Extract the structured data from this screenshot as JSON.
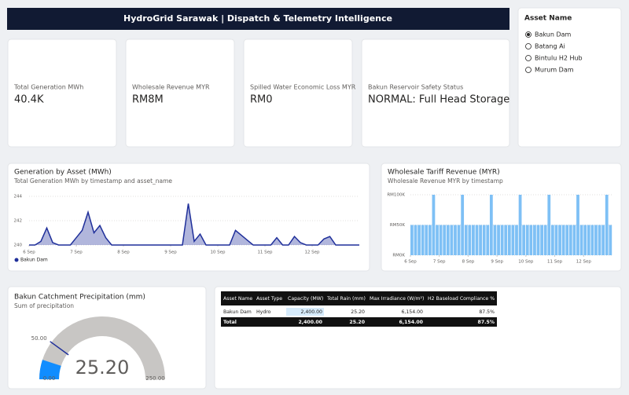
{
  "header": {
    "title": "HydroGrid Sarawak | Dispatch & Telemetry Intelligence"
  },
  "cards": [
    {
      "label": "Total Generation MWh",
      "value": "40.4K"
    },
    {
      "label": "Wholesale Revenue MYR",
      "value": "RM8M"
    },
    {
      "label": "Spilled Water Economic Loss MYR",
      "value": "RM0"
    },
    {
      "label": "Bakun Reservoir Safety Status",
      "value": "NORMAL: Full Head Storage"
    }
  ],
  "slicer": {
    "title": "Asset Name",
    "options": [
      "Bakun Dam",
      "Batang Ai",
      "Bintulu H2 Hub",
      "Murum Dam"
    ],
    "selected": 0
  },
  "chart_data": [
    {
      "type": "area",
      "title": "Generation by Asset (MWh)",
      "subtitle": "Total Generation MWh by timestamp and asset_name",
      "x": [
        6,
        6.125,
        6.25,
        6.375,
        6.5,
        6.625,
        6.75,
        6.875,
        7,
        7.125,
        7.25,
        7.375,
        7.5,
        7.625,
        7.75,
        7.875,
        8,
        8.125,
        8.25,
        8.375,
        8.5,
        8.625,
        8.75,
        8.875,
        9,
        9.125,
        9.25,
        9.375,
        9.5,
        9.625,
        9.75,
        9.875,
        10,
        10.125,
        10.25,
        10.375,
        10.5,
        10.625,
        10.75,
        10.875,
        11,
        11.125,
        11.25,
        11.375,
        11.5,
        11.625,
        11.75,
        11.875,
        12,
        12.125,
        12.25,
        12.375,
        12.5,
        12.625,
        12.75,
        12.875,
        13
      ],
      "series": [
        {
          "name": "Bakun Dam",
          "color": "#1f2f9a",
          "values": [
            240,
            240,
            240.3,
            241.4,
            240.2,
            240,
            240,
            240,
            240.6,
            241.2,
            242.7,
            241,
            241.6,
            240.6,
            240,
            240,
            240,
            240,
            240,
            240,
            240,
            240,
            240,
            240,
            240,
            240,
            240,
            243.4,
            240.3,
            240.9,
            240,
            240,
            240,
            240,
            240,
            241.2,
            240.8,
            240.4,
            240,
            240,
            240,
            240,
            240.6,
            240,
            240,
            240.7,
            240.2,
            240,
            240,
            240,
            240.5,
            240.7,
            240,
            240,
            240,
            240,
            240
          ]
        }
      ],
      "xlim": [
        6,
        13
      ],
      "xticks": [
        {
          "value": 6,
          "label": "6 Sep"
        },
        {
          "value": 7,
          "label": "7 Sep"
        },
        {
          "value": 8,
          "label": "8 Sep"
        },
        {
          "value": 9,
          "label": "9 Sep"
        },
        {
          "value": 10,
          "label": "10 Sep"
        },
        {
          "value": 11,
          "label": "11 Sep"
        },
        {
          "value": 12,
          "label": "12 Sep"
        }
      ],
      "ylim": [
        240,
        244
      ],
      "yticks": [
        240,
        242,
        244
      ],
      "grid": true,
      "legend": "bottom-left"
    },
    {
      "type": "bar",
      "title": "Wholesale Tariff Revenue (MYR)",
      "subtitle": "Wholesale Revenue MYR by timestamp",
      "color": "#7ec0f5",
      "x": [
        6,
        6.125,
        6.25,
        6.375,
        6.5,
        6.625,
        6.75,
        6.875,
        7,
        7.125,
        7.25,
        7.375,
        7.5,
        7.625,
        7.75,
        7.875,
        8,
        8.125,
        8.25,
        8.375,
        8.5,
        8.625,
        8.75,
        8.875,
        9,
        9.125,
        9.25,
        9.375,
        9.5,
        9.625,
        9.75,
        9.875,
        10,
        10.125,
        10.25,
        10.375,
        10.5,
        10.625,
        10.75,
        10.875,
        11,
        11.125,
        11.25,
        11.375,
        11.5,
        11.625,
        11.75,
        11.875,
        12,
        12.125,
        12.25,
        12.375,
        12.5,
        12.625,
        12.75,
        12.875
      ],
      "values": [
        50000,
        50000,
        50000,
        50000,
        50000,
        50000,
        100000,
        50000,
        50000,
        50000,
        50000,
        50000,
        50000,
        50000,
        100000,
        50000,
        50000,
        50000,
        50000,
        50000,
        50000,
        50000,
        100000,
        50000,
        50000,
        50000,
        50000,
        50000,
        50000,
        50000,
        100000,
        50000,
        50000,
        50000,
        50000,
        50000,
        50000,
        50000,
        100000,
        50000,
        50000,
        50000,
        50000,
        50000,
        50000,
        50000,
        100000,
        50000,
        50000,
        50000,
        50000,
        50000,
        50000,
        50000,
        100000,
        50000
      ],
      "xlim": [
        6,
        13
      ],
      "xticks": [
        {
          "value": 6,
          "label": "6 Sep"
        },
        {
          "value": 7,
          "label": "7 Sep"
        },
        {
          "value": 8,
          "label": "8 Sep"
        },
        {
          "value": 9,
          "label": "9 Sep"
        },
        {
          "value": 10,
          "label": "10 Sep"
        },
        {
          "value": 11,
          "label": "11 Sep"
        },
        {
          "value": 12,
          "label": "12 Sep"
        }
      ],
      "ylim": [
        0,
        100000
      ],
      "yticks": [
        {
          "value": 0,
          "label": "RM0K"
        },
        {
          "value": 50000,
          "label": "RM50K"
        },
        {
          "value": 100000,
          "label": "RM100K"
        }
      ],
      "grid": true
    },
    {
      "type": "gauge",
      "title": "Bakun Catchment Precipitation (mm)",
      "subtitle": "Sum of precipitation",
      "values": [
        25.2
      ],
      "value_labels": [
        "25.20"
      ],
      "color": "#118dff",
      "ylim": [
        0,
        250
      ],
      "yticks": [
        {
          "value": 0,
          "label": "0.00"
        },
        {
          "value": 250,
          "label": "250.00"
        }
      ],
      "target": {
        "value": 50,
        "label": "50.00"
      }
    }
  ],
  "table": {
    "columns": [
      "Asset Name",
      "Asset Type",
      "Capacity (MW)",
      "Total Rain (mm)",
      "Max Irradiance (W/m²)",
      "H2 Baseload Compliance %"
    ],
    "rows": [
      [
        "Bakun Dam",
        "Hydro",
        "2,400.00",
        "25.20",
        "6,154.00",
        "87.5%"
      ]
    ],
    "total": [
      "Total",
      null,
      "2,400.00",
      "25.20",
      "6,154.00",
      "87.5%"
    ]
  }
}
